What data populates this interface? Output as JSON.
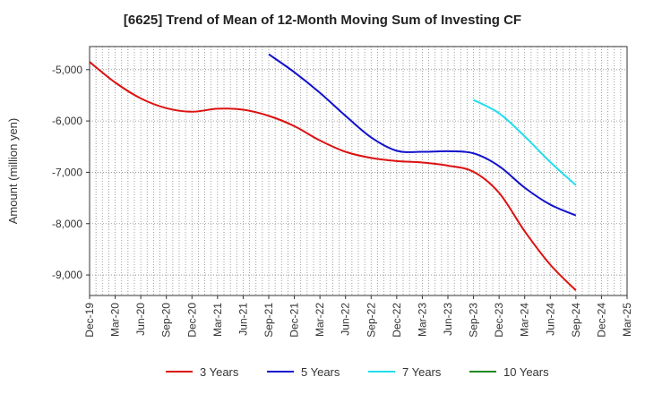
{
  "chart_data": {
    "type": "line",
    "title": "[6625]  Trend of Mean of 12-Month Moving Sum of Investing CF",
    "xlabel": "",
    "ylabel": "Amount (million yen)",
    "categories": [
      "Dec-19",
      "Mar-20",
      "Jun-20",
      "Sep-20",
      "Dec-20",
      "Mar-21",
      "Jun-21",
      "Sep-21",
      "Dec-21",
      "Mar-22",
      "Jun-22",
      "Sep-22",
      "Dec-22",
      "Mar-23",
      "Jun-23",
      "Sep-23",
      "Dec-23",
      "Mar-24",
      "Jun-24",
      "Sep-24",
      "Dec-24",
      "Mar-25"
    ],
    "ylim": [
      -9400,
      -4550
    ],
    "yticks": [
      -5000,
      -6000,
      -7000,
      -8000,
      -9000
    ],
    "ytick_labels": [
      "-5,000",
      "-6,000",
      "-7,000",
      "-8,000",
      "-9,000"
    ],
    "grid": true,
    "legend_position": "bottom",
    "series": [
      {
        "name": "3 Years",
        "color": "#dd1111",
        "values": [
          -4850,
          -5250,
          -5560,
          -5750,
          -5820,
          -5760,
          -5780,
          -5900,
          -6100,
          -6380,
          -6600,
          -6720,
          -6780,
          -6810,
          -6870,
          -6990,
          -7400,
          -8150,
          -8800,
          -9300,
          null,
          null
        ]
      },
      {
        "name": "5 Years",
        "color": "#1111cc",
        "values": [
          null,
          null,
          null,
          null,
          null,
          null,
          null,
          -4700,
          -5050,
          -5450,
          -5900,
          -6320,
          -6580,
          -6600,
          -6590,
          -6630,
          -6880,
          -7300,
          -7630,
          -7840,
          null,
          null
        ]
      },
      {
        "name": "7 Years",
        "color": "#22ddee",
        "values": [
          null,
          null,
          null,
          null,
          null,
          null,
          null,
          null,
          null,
          null,
          null,
          null,
          null,
          null,
          null,
          -5590,
          -5850,
          -6300,
          -6800,
          -7250,
          null,
          null
        ]
      },
      {
        "name": "10 Years",
        "color": "#228822",
        "values": [
          null,
          null,
          null,
          null,
          null,
          null,
          null,
          null,
          null,
          null,
          null,
          null,
          null,
          null,
          null,
          null,
          null,
          null,
          null,
          null,
          null,
          null
        ]
      }
    ]
  }
}
